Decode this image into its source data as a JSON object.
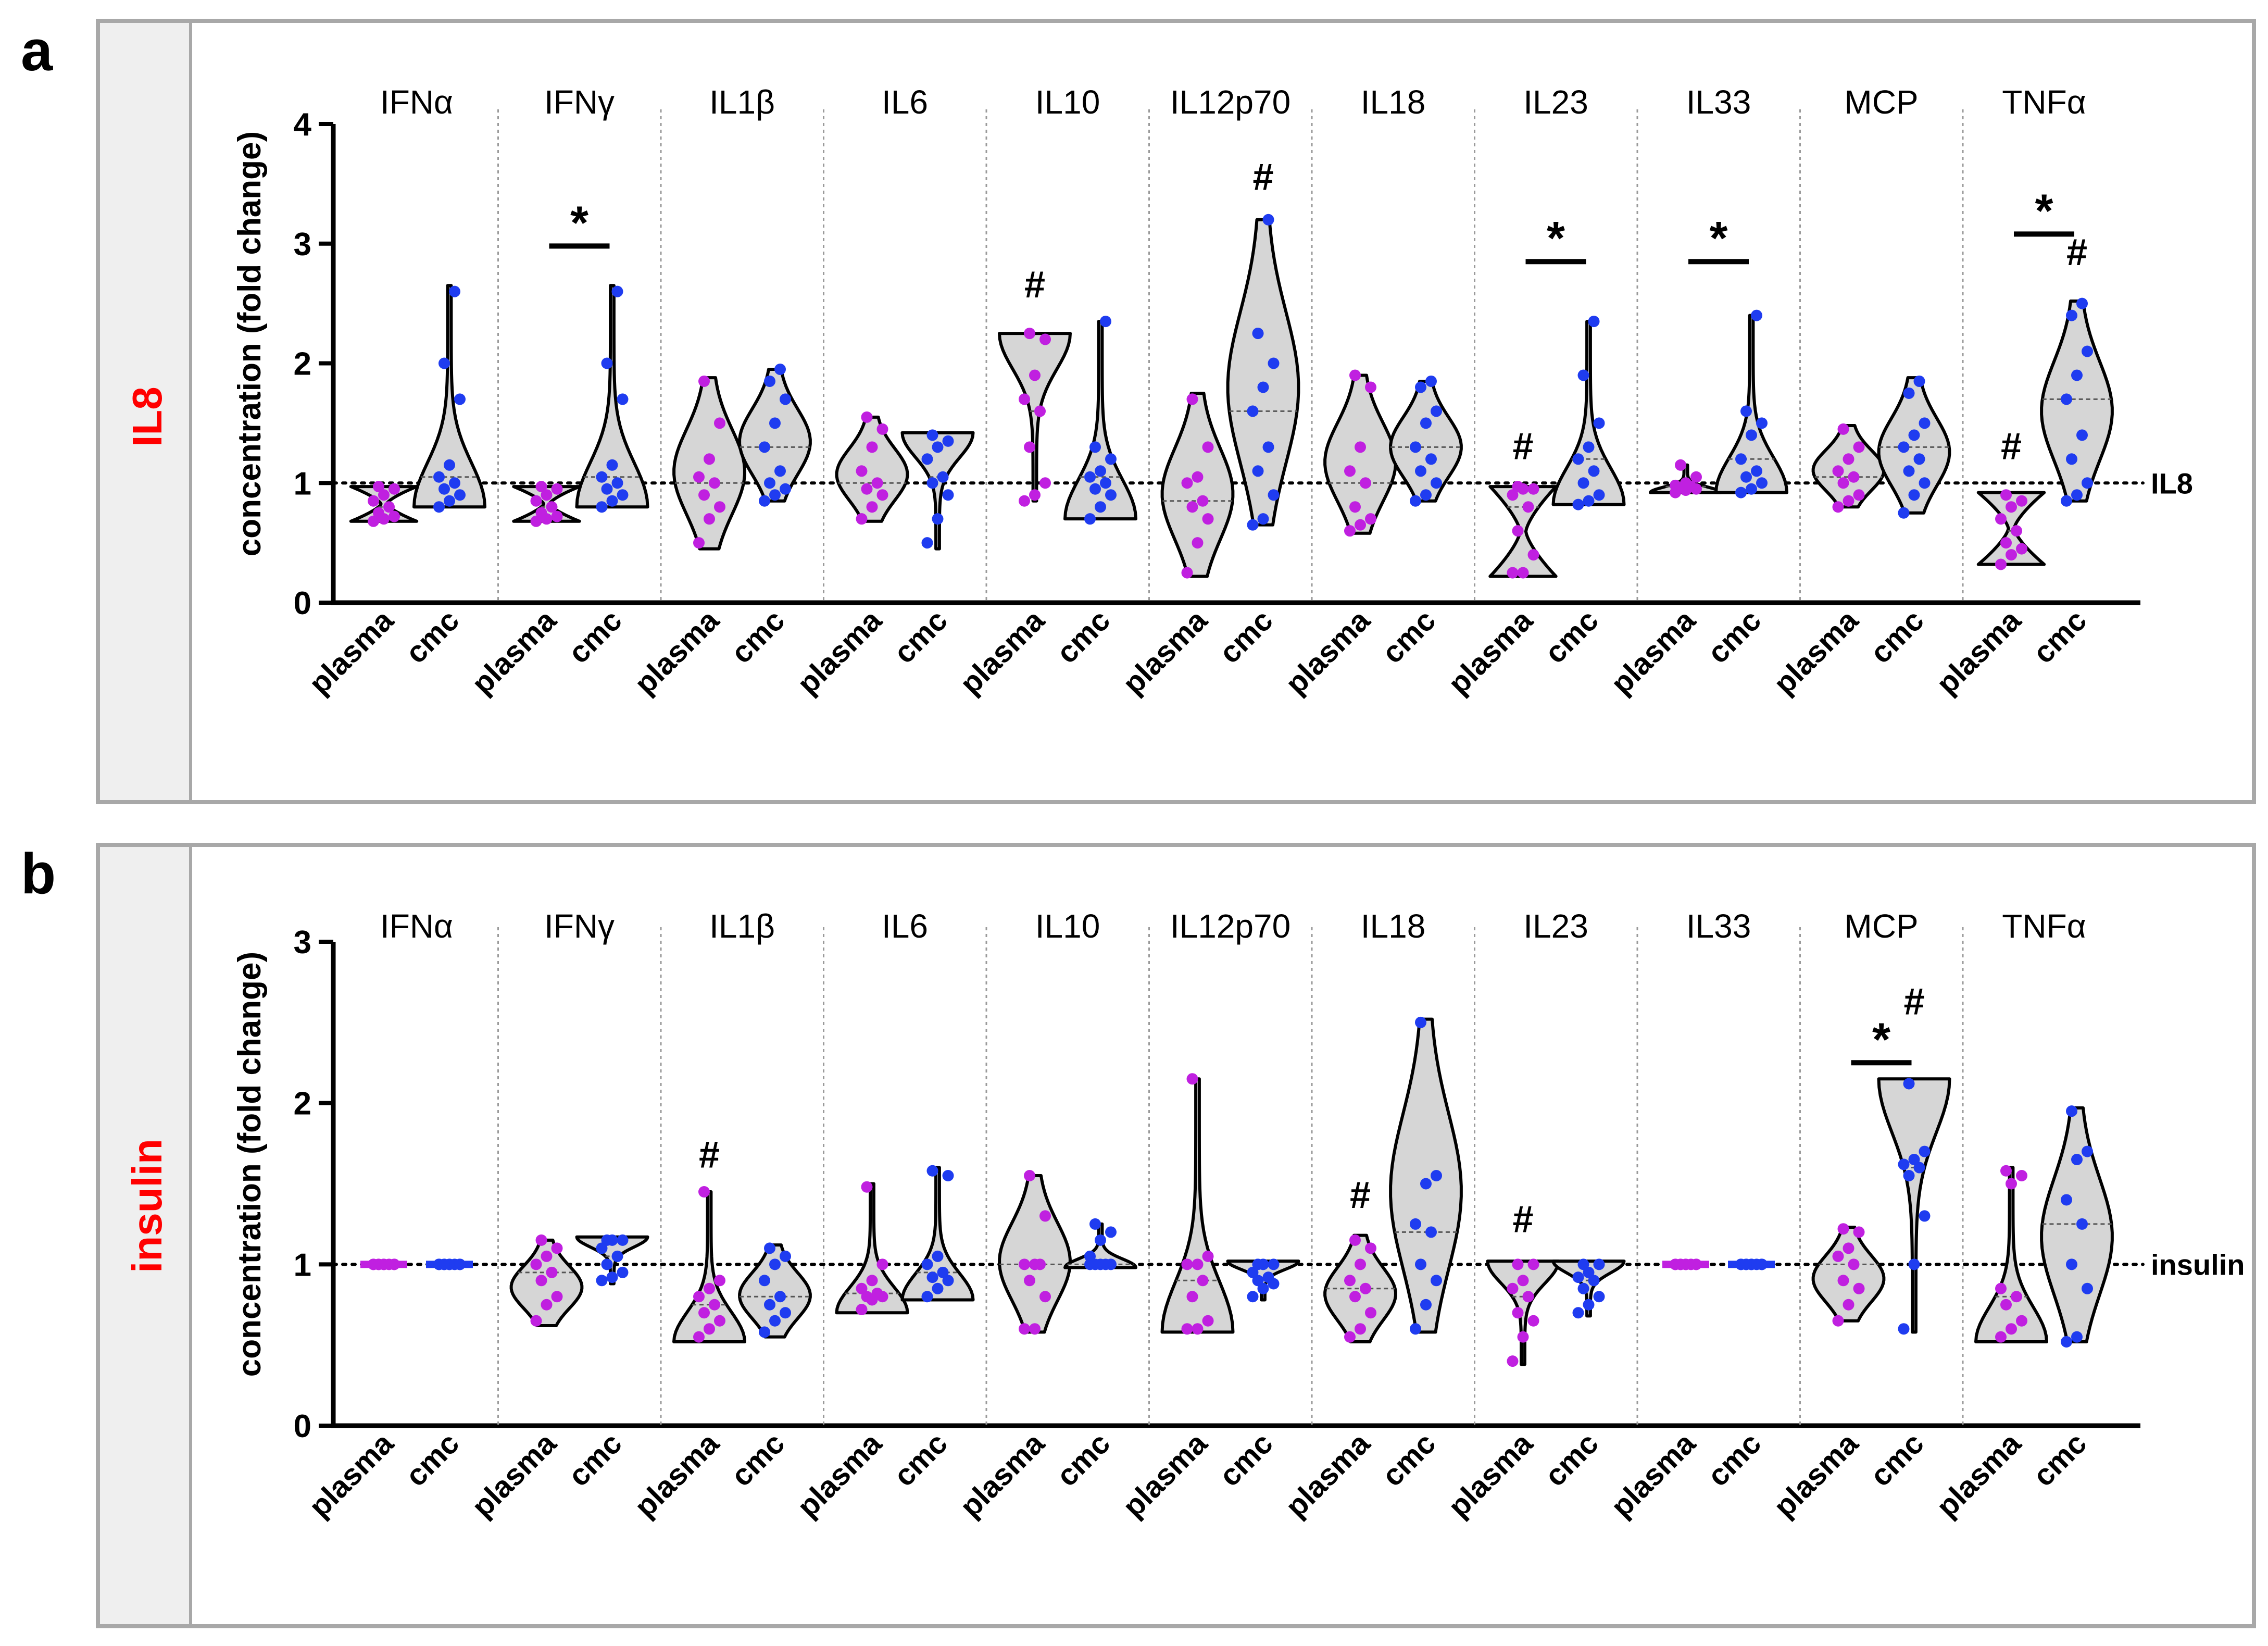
{
  "colors": {
    "plasma": "#c020e0",
    "cmc": "#1f3cf0",
    "violin_fill": "#d6d6d6",
    "frame": "#a8a8a8",
    "side_bg": "#efefef",
    "title_red": "#ff0000",
    "ink": "#000000"
  },
  "chart_data": [
    {
      "type": "violin",
      "panel_letter": "a",
      "side_title": "IL8",
      "ylabel": "concentration (fold change)",
      "ylim": [
        0,
        4
      ],
      "yticks": [
        "0",
        "1",
        "2",
        "3",
        "4"
      ],
      "baseline_value": 1,
      "baseline_label": "IL8",
      "categories": [
        "IFNα",
        "IFNγ",
        "IL1β",
        "IL6",
        "IL10",
        "IL12p70",
        "IL18",
        "IL23",
        "IL33",
        "MCP",
        "TNFα"
      ],
      "groups": [
        "plasma",
        "cmc"
      ],
      "sig_star": "*",
      "sig_hash": "#",
      "series": [
        {
          "name": "IFNα",
          "plasma": {
            "points": [
              0.68,
              0.7,
              0.72,
              0.75,
              0.8,
              0.85,
              0.9,
              0.95,
              0.97
            ],
            "vmin": 0.68,
            "vmax": 0.97,
            "shape": "bow"
          },
          "cmc": {
            "points": [
              0.8,
              0.85,
              0.9,
              0.95,
              1.0,
              1.05,
              1.15,
              1.7,
              2.0,
              2.6
            ],
            "vmin": 0.8,
            "vmax": 2.65,
            "shape": "bot"
          }
        },
        {
          "name": "IFNγ",
          "plasma": {
            "points": [
              0.68,
              0.7,
              0.72,
              0.75,
              0.8,
              0.85,
              0.9,
              0.95,
              0.97
            ],
            "vmin": 0.68,
            "vmax": 0.97,
            "shape": "bow"
          },
          "cmc": {
            "points": [
              0.8,
              0.85,
              0.9,
              0.95,
              1.0,
              1.05,
              1.15,
              1.7,
              2.0,
              2.6
            ],
            "vmin": 0.8,
            "vmax": 2.65,
            "shape": "bot"
          },
          "star": true,
          "star_value": 2.98
        },
        {
          "name": "IL1β",
          "plasma": {
            "points": [
              0.5,
              0.7,
              0.8,
              0.9,
              1.0,
              1.05,
              1.2,
              1.5,
              1.85
            ],
            "vmin": 0.45,
            "vmax": 1.88,
            "shape": "mid"
          },
          "cmc": {
            "points": [
              0.85,
              0.9,
              0.95,
              1.0,
              1.1,
              1.3,
              1.5,
              1.7,
              1.85,
              1.95
            ],
            "vmin": 0.85,
            "vmax": 1.95,
            "shape": "mid"
          }
        },
        {
          "name": "IL6",
          "plasma": {
            "points": [
              0.7,
              0.8,
              0.9,
              0.95,
              1.0,
              1.1,
              1.3,
              1.45,
              1.55
            ],
            "vmin": 0.68,
            "vmax": 1.55,
            "shape": "mid"
          },
          "cmc": {
            "points": [
              0.5,
              0.7,
              0.9,
              1.0,
              1.05,
              1.2,
              1.3,
              1.35,
              1.4
            ],
            "vmin": 0.45,
            "vmax": 1.42,
            "shape": "top"
          }
        },
        {
          "name": "IL10",
          "plasma": {
            "points": [
              0.85,
              0.9,
              1.0,
              1.3,
              1.6,
              1.7,
              1.9,
              2.2,
              2.25
            ],
            "vmin": 0.85,
            "vmax": 2.25,
            "shape": "top"
          },
          "cmc": {
            "points": [
              0.7,
              0.8,
              0.9,
              0.95,
              1.0,
              1.05,
              1.1,
              1.2,
              1.3,
              2.35
            ],
            "vmin": 0.7,
            "vmax": 2.35,
            "shape": "bot"
          },
          "hash": "plasma",
          "hash_value": 2.55
        },
        {
          "name": "IL12p70",
          "plasma": {
            "points": [
              0.25,
              0.5,
              0.7,
              0.8,
              0.85,
              1.0,
              1.05,
              1.3,
              1.7
            ],
            "vmin": 0.22,
            "vmax": 1.75,
            "shape": "mid"
          },
          "cmc": {
            "points": [
              0.65,
              0.7,
              0.9,
              1.1,
              1.3,
              1.6,
              1.8,
              2.0,
              2.25,
              3.2
            ],
            "vmin": 0.65,
            "vmax": 3.2,
            "shape": "mid"
          },
          "hash": "cmc",
          "hash_value": 3.45
        },
        {
          "name": "IL18",
          "plasma": {
            "points": [
              0.6,
              0.65,
              0.7,
              0.8,
              1.0,
              1.1,
              1.3,
              1.8,
              1.9
            ],
            "vmin": 0.58,
            "vmax": 1.9,
            "shape": "mid"
          },
          "cmc": {
            "points": [
              0.85,
              0.9,
              1.0,
              1.1,
              1.2,
              1.3,
              1.5,
              1.6,
              1.8,
              1.85
            ],
            "vmin": 0.85,
            "vmax": 1.85,
            "shape": "mid"
          }
        },
        {
          "name": "IL23",
          "plasma": {
            "points": [
              0.25,
              0.25,
              0.4,
              0.6,
              0.8,
              0.9,
              0.95,
              0.95,
              0.97
            ],
            "vmin": 0.22,
            "vmax": 0.97,
            "shape": "bow"
          },
          "cmc": {
            "points": [
              0.82,
              0.85,
              0.9,
              1.0,
              1.1,
              1.2,
              1.3,
              1.5,
              1.9,
              2.35
            ],
            "vmin": 0.82,
            "vmax": 2.35,
            "shape": "bot"
          },
          "hash": "plasma",
          "hash_value": 1.2,
          "star": true,
          "star_value": 2.85
        },
        {
          "name": "IL33",
          "plasma": {
            "points": [
              0.92,
              0.94,
              0.95,
              0.96,
              0.97,
              0.98,
              1.0,
              1.05,
              1.15
            ],
            "vmin": 0.92,
            "vmax": 1.15,
            "shape": "bot"
          },
          "cmc": {
            "points": [
              0.92,
              0.95,
              1.0,
              1.05,
              1.1,
              1.2,
              1.4,
              1.5,
              1.6,
              2.4
            ],
            "vmin": 0.92,
            "vmax": 2.4,
            "shape": "bot"
          },
          "star": true,
          "star_value": 2.85
        },
        {
          "name": "MCP",
          "plasma": {
            "points": [
              0.8,
              0.85,
              0.9,
              1.0,
              1.05,
              1.1,
              1.2,
              1.3,
              1.45
            ],
            "vmin": 0.8,
            "vmax": 1.48,
            "shape": "mid"
          },
          "cmc": {
            "points": [
              0.75,
              0.9,
              1.0,
              1.1,
              1.2,
              1.3,
              1.4,
              1.5,
              1.75,
              1.85
            ],
            "vmin": 0.75,
            "vmax": 1.88,
            "shape": "mid"
          }
        },
        {
          "name": "TNFα",
          "plasma": {
            "points": [
              0.32,
              0.4,
              0.45,
              0.5,
              0.6,
              0.7,
              0.8,
              0.85,
              0.9
            ],
            "vmin": 0.32,
            "vmax": 0.92,
            "shape": "bow"
          },
          "cmc": {
            "points": [
              0.85,
              0.9,
              1.0,
              1.2,
              1.4,
              1.7,
              1.9,
              2.1,
              2.4,
              2.5
            ],
            "vmin": 0.85,
            "vmax": 2.52,
            "shape": "mid"
          },
          "hash": "both",
          "hash_value_plasma": 1.2,
          "hash_value_cmc": 2.82,
          "star": true,
          "star_value": 3.08
        }
      ]
    },
    {
      "type": "violin",
      "panel_letter": "b",
      "side_title": "insulin",
      "ylabel": "concentration (fold change)",
      "ylim": [
        0,
        3
      ],
      "yticks": [
        "0",
        "1",
        "2",
        "3"
      ],
      "baseline_value": 1,
      "baseline_label": "insulin",
      "categories": [
        "IFNα",
        "IFNγ",
        "IL1β",
        "IL6",
        "IL10",
        "IL12p70",
        "IL18",
        "IL23",
        "IL33",
        "MCP",
        "TNFα"
      ],
      "groups": [
        "plasma",
        "cmc"
      ],
      "sig_star": "*",
      "sig_hash": "#",
      "series": [
        {
          "name": "IFNα",
          "plasma": {
            "points": [
              1,
              1,
              1,
              1,
              1,
              1,
              1,
              1,
              1
            ],
            "vmin": 1,
            "vmax": 1,
            "shape": "flat"
          },
          "cmc": {
            "points": [
              1,
              1,
              1,
              1,
              1,
              1,
              1,
              1,
              1
            ],
            "vmin": 1,
            "vmax": 1,
            "shape": "flat"
          }
        },
        {
          "name": "IFNγ",
          "plasma": {
            "points": [
              0.65,
              0.75,
              0.8,
              0.9,
              0.95,
              1.0,
              1.05,
              1.1,
              1.15
            ],
            "vmin": 0.62,
            "vmax": 1.15,
            "shape": "mid"
          },
          "cmc": {
            "points": [
              0.9,
              0.92,
              0.95,
              1.0,
              1.05,
              1.1,
              1.15,
              1.15,
              1.15
            ],
            "vmin": 0.88,
            "vmax": 1.17,
            "shape": "top"
          }
        },
        {
          "name": "IL1β",
          "plasma": {
            "points": [
              0.55,
              0.6,
              0.65,
              0.7,
              0.75,
              0.8,
              0.85,
              0.9,
              1.45
            ],
            "vmin": 0.52,
            "vmax": 1.45,
            "shape": "bot"
          },
          "cmc": {
            "points": [
              0.58,
              0.65,
              0.7,
              0.75,
              0.8,
              0.9,
              1.0,
              1.05,
              1.1
            ],
            "vmin": 0.55,
            "vmax": 1.12,
            "shape": "mid"
          },
          "hash": "plasma",
          "hash_value": 1.6
        },
        {
          "name": "IL6",
          "plasma": {
            "points": [
              0.72,
              0.78,
              0.8,
              0.8,
              0.82,
              0.85,
              0.9,
              1.0,
              1.48
            ],
            "vmin": 0.7,
            "vmax": 1.5,
            "shape": "bot"
          },
          "cmc": {
            "points": [
              0.8,
              0.85,
              0.9,
              0.92,
              0.95,
              1.0,
              1.05,
              1.55,
              1.58
            ],
            "vmin": 0.78,
            "vmax": 1.6,
            "shape": "bot"
          }
        },
        {
          "name": "IL10",
          "plasma": {
            "points": [
              0.6,
              0.6,
              0.8,
              0.9,
              1.0,
              1.0,
              1.0,
              1.3,
              1.55
            ],
            "vmin": 0.58,
            "vmax": 1.55,
            "shape": "mid"
          },
          "cmc": {
            "points": [
              1.0,
              1.0,
              1.0,
              1.0,
              1.0,
              1.05,
              1.15,
              1.2,
              1.25
            ],
            "vmin": 0.98,
            "vmax": 1.25,
            "shape": "bot"
          }
        },
        {
          "name": "IL12p70",
          "plasma": {
            "points": [
              0.6,
              0.6,
              0.65,
              0.8,
              0.9,
              1.0,
              1.0,
              1.05,
              2.15
            ],
            "vmin": 0.58,
            "vmax": 2.15,
            "shape": "bot"
          },
          "cmc": {
            "points": [
              0.8,
              0.85,
              0.88,
              0.9,
              0.92,
              0.95,
              1.0,
              1.0,
              1.0
            ],
            "vmin": 0.78,
            "vmax": 1.02,
            "shape": "top"
          }
        },
        {
          "name": "IL18",
          "plasma": {
            "points": [
              0.55,
              0.6,
              0.7,
              0.8,
              0.85,
              0.9,
              1.0,
              1.1,
              1.15
            ],
            "vmin": 0.52,
            "vmax": 1.18,
            "shape": "mid"
          },
          "cmc": {
            "points": [
              0.6,
              0.75,
              0.9,
              1.0,
              1.2,
              1.25,
              1.5,
              1.55,
              2.5
            ],
            "vmin": 0.58,
            "vmax": 2.52,
            "shape": "mid"
          },
          "hash": "plasma",
          "hash_value": 1.35
        },
        {
          "name": "IL23",
          "plasma": {
            "points": [
              0.4,
              0.55,
              0.65,
              0.7,
              0.8,
              0.85,
              0.9,
              1.0,
              1.0
            ],
            "vmin": 0.38,
            "vmax": 1.02,
            "shape": "top"
          },
          "cmc": {
            "points": [
              0.7,
              0.75,
              0.8,
              0.85,
              0.9,
              0.92,
              0.95,
              1.0,
              1.0
            ],
            "vmin": 0.68,
            "vmax": 1.02,
            "shape": "top"
          },
          "hash": "plasma",
          "hash_value": 1.2
        },
        {
          "name": "IL33",
          "plasma": {
            "points": [
              1,
              1,
              1,
              1,
              1,
              1,
              1,
              1,
              1
            ],
            "vmin": 1,
            "vmax": 1,
            "shape": "flat"
          },
          "cmc": {
            "points": [
              1,
              1,
              1,
              1,
              1,
              1,
              1,
              1,
              1
            ],
            "vmin": 1,
            "vmax": 1,
            "shape": "flat"
          }
        },
        {
          "name": "MCP",
          "plasma": {
            "points": [
              0.65,
              0.75,
              0.85,
              0.9,
              1.0,
              1.05,
              1.1,
              1.2,
              1.22
            ],
            "vmin": 0.65,
            "vmax": 1.23,
            "shape": "mid"
          },
          "cmc": {
            "points": [
              0.6,
              1.0,
              1.3,
              1.55,
              1.6,
              1.62,
              1.65,
              1.7,
              2.12
            ],
            "vmin": 0.58,
            "vmax": 2.15,
            "shape": "top"
          },
          "hash": "cmc",
          "hash_value": 2.55,
          "star": true,
          "star_value": 2.25
        },
        {
          "name": "TNFα",
          "plasma": {
            "points": [
              0.55,
              0.6,
              0.65,
              0.75,
              0.8,
              0.85,
              1.5,
              1.55,
              1.58
            ],
            "vmin": 0.52,
            "vmax": 1.6,
            "shape": "bot"
          },
          "cmc": {
            "points": [
              0.52,
              0.55,
              0.85,
              1.0,
              1.25,
              1.4,
              1.65,
              1.7,
              1.95
            ],
            "vmin": 0.52,
            "vmax": 1.97,
            "shape": "mid"
          }
        }
      ]
    }
  ]
}
